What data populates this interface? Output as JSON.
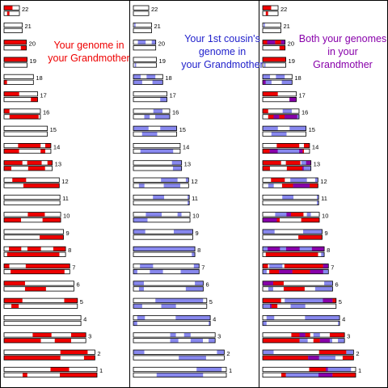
{
  "colors": {
    "self": "#ee0000",
    "cousin": "#8888ee",
    "both": "#8800aa",
    "empty": "#ffffff",
    "outline": "#000000"
  },
  "panels": [
    {
      "title": "Your genome in\nyour Grandmother",
      "title_color": "#ee0000"
    },
    {
      "title": "Your 1st cousin's\ngenome in\nyour Grandmother",
      "title_color": "#2222cc"
    },
    {
      "title": "Both your genomes\nin your\nGrandmother",
      "title_color": "#8800aa"
    }
  ],
  "chromosomes": [
    {
      "label": "22",
      "length": 0.22,
      "top": [
        [
          0,
          0.55
        ]
      ],
      "bottom": [
        [
          0.2,
          0.35
        ]
      ],
      "cousin_top": [],
      "cousin_bottom": []
    },
    {
      "label": "21",
      "length": 0.26,
      "top": [],
      "bottom": [],
      "cousin_top": [
        [
          0.05,
          0.12
        ]
      ],
      "cousin_bottom": []
    },
    {
      "label": "20",
      "length": 0.32,
      "top": [
        [
          0,
          1
        ]
      ],
      "bottom": [
        [
          0.75,
          1
        ]
      ],
      "cousin_top": [
        [
          0.2,
          0.55
        ],
        [
          0.82,
          1
        ]
      ],
      "cousin_bottom": []
    },
    {
      "label": "19",
      "length": 0.33,
      "top": [
        [
          0,
          1
        ]
      ],
      "bottom": [],
      "cousin_top": [],
      "cousin_bottom": [
        [
          0.06,
          0.12
        ]
      ]
    },
    {
      "label": "18",
      "length": 0.42,
      "top": [],
      "bottom": [
        [
          0,
          0.1
        ]
      ],
      "cousin_top": [
        [
          0,
          0.25
        ],
        [
          0.45,
          0.75
        ]
      ],
      "cousin_bottom": [
        [
          0,
          0.3
        ],
        [
          0.65,
          1
        ]
      ]
    },
    {
      "label": "17",
      "length": 0.48,
      "top": [
        [
          0,
          0.45
        ]
      ],
      "bottom": [
        [
          0.8,
          1
        ]
      ],
      "cousin_top": [],
      "cousin_bottom": [
        [
          0.8,
          1
        ]
      ]
    },
    {
      "label": "16",
      "length": 0.52,
      "top": [
        [
          0,
          0.15
        ]
      ],
      "bottom": [
        [
          0.15,
          0.95
        ]
      ],
      "cousin_top": [
        [
          0.55,
          0.8
        ]
      ],
      "cousin_bottom": [
        [
          0.3,
          0.45
        ],
        [
          0.6,
          1
        ]
      ]
    },
    {
      "label": "15",
      "length": 0.62,
      "top": [],
      "bottom": [],
      "cousin_top": [
        [
          0,
          0.35
        ],
        [
          0.62,
          1
        ]
      ],
      "cousin_bottom": [
        [
          0.2,
          0.55
        ]
      ]
    },
    {
      "label": "14",
      "length": 0.67,
      "top": [
        [
          0.3,
          0.78
        ],
        [
          0.88,
          1
        ]
      ],
      "bottom": [
        [
          0,
          0.32
        ],
        [
          0.78,
          0.88
        ]
      ],
      "cousin_top": [],
      "cousin_bottom": [
        [
          0.15,
          0.85
        ]
      ]
    },
    {
      "label": "13",
      "length": 0.69,
      "top": [
        [
          0,
          0.38
        ],
        [
          0.48,
          0.78
        ],
        [
          0.9,
          1
        ]
      ],
      "bottom": [
        [
          0,
          0.15
        ],
        [
          0.5,
          0.85
        ]
      ],
      "cousin_top": [
        [
          0.8,
          1
        ]
      ],
      "cousin_bottom": [
        [
          0.82,
          1
        ]
      ]
    },
    {
      "label": "12",
      "length": 0.79,
      "top": [
        [
          0.15,
          0.4
        ]
      ],
      "bottom": [
        [
          0.35,
          1
        ]
      ],
      "cousin_top": [
        [
          0.5,
          0.8
        ],
        [
          0.95,
          1
        ]
      ],
      "cousin_bottom": [
        [
          0.1,
          0.2
        ],
        [
          0.55,
          0.85
        ]
      ]
    },
    {
      "label": "11",
      "length": 0.8,
      "top": [],
      "bottom": [],
      "cousin_top": [
        [
          0.35,
          0.55
        ],
        [
          0.97,
          1
        ]
      ],
      "cousin_bottom": [
        [
          0.97,
          1
        ]
      ]
    },
    {
      "label": "10",
      "length": 0.81,
      "top": [
        [
          0.42,
          0.72
        ]
      ],
      "bottom": [
        [
          0,
          0.3
        ],
        [
          0.68,
          1
        ]
      ],
      "cousin_top": [
        [
          0.22,
          0.5
        ],
        [
          0.78,
          0.85
        ]
      ],
      "cousin_bottom": [
        [
          0,
          0.25
        ]
      ]
    },
    {
      "label": "9",
      "length": 0.85,
      "top": [],
      "bottom": [
        [
          0.6,
          1
        ]
      ],
      "cousin_top": [
        [
          0,
          0.2
        ],
        [
          0.68,
          1
        ]
      ],
      "cousin_bottom": []
    },
    {
      "label": "8",
      "length": 0.88,
      "top": [
        [
          0.08,
          0.28
        ],
        [
          0.38,
          0.6
        ],
        [
          0.8,
          1
        ]
      ],
      "bottom": [
        [
          0.05,
          0.9
        ]
      ],
      "cousin_top": [
        [
          0,
          1
        ]
      ],
      "cousin_bottom": [
        [
          0.95,
          1
        ]
      ]
    },
    {
      "label": "7",
      "length": 0.94,
      "top": [
        [
          0,
          0.08
        ],
        [
          0.33,
          1
        ]
      ],
      "bottom": [
        [
          0.1,
          0.92
        ]
      ],
      "cousin_top": [
        [
          0.1,
          0.3
        ],
        [
          0.92,
          1
        ]
      ],
      "cousin_bottom": [
        [
          0,
          0.06
        ],
        [
          0.25,
          0.45
        ],
        [
          0.72,
          1
        ]
      ]
    },
    {
      "label": "6",
      "length": 1.0,
      "top": [
        [
          0,
          0.3
        ]
      ],
      "bottom": [
        [
          0.3,
          0.6
        ]
      ],
      "cousin_top": [
        [
          0,
          0.15
        ],
        [
          0.88,
          1
        ]
      ],
      "cousin_bottom": [
        [
          0.08,
          0.15
        ],
        [
          0.75,
          1
        ]
      ]
    },
    {
      "label": "5",
      "length": 1.05,
      "top": [
        [
          0,
          0.25
        ],
        [
          0.82,
          1
        ]
      ],
      "bottom": [
        [
          0.1,
          0.2
        ]
      ],
      "cousin_top": [
        [
          0.3,
          0.95
        ]
      ],
      "cousin_bottom": [
        [
          0,
          0.12
        ],
        [
          0.38,
          0.58
        ]
      ]
    },
    {
      "label": "4",
      "length": 1.1,
      "top": [],
      "bottom": [],
      "cousin_top": [
        [
          0.05,
          0.15
        ],
        [
          0.55,
          1
        ]
      ],
      "cousin_bottom": [
        [
          0,
          0.05
        ],
        [
          0.98,
          1
        ]
      ]
    },
    {
      "label": "3",
      "length": 1.17,
      "top": [
        [
          0.35,
          0.58
        ],
        [
          0.82,
          1
        ]
      ],
      "bottom": [
        [
          0,
          0.45
        ],
        [
          0.62,
          0.82
        ]
      ],
      "cousin_top": [
        [
          0.45,
          0.52
        ],
        [
          0.62,
          0.7
        ]
      ],
      "cousin_bottom": [
        [
          0.45,
          0.55
        ],
        [
          0.7,
          0.85
        ],
        [
          0.92,
          1
        ]
      ]
    },
    {
      "label": "2",
      "length": 1.3,
      "top": [
        [
          0.62,
          0.92
        ]
      ],
      "bottom": [
        [
          0,
          0.62
        ],
        [
          0.88,
          1
        ]
      ],
      "cousin_top": [
        [
          0,
          0.12
        ],
        [
          0.92,
          1
        ]
      ],
      "cousin_bottom": [
        [
          0.5,
          0.8
        ]
      ]
    },
    {
      "label": "1",
      "length": 1.33,
      "top": [
        [
          0.5,
          0.7
        ]
      ],
      "bottom": [
        [
          0.2,
          0.25
        ],
        [
          0.6,
          1
        ]
      ],
      "cousin_top": [
        [
          0.68,
          0.95
        ]
      ],
      "cousin_bottom": [
        [
          0.25,
          0.75
        ]
      ]
    }
  ]
}
